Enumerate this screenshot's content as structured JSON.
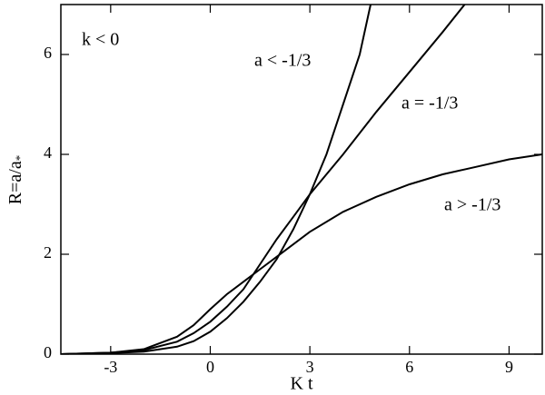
{
  "chart_data": {
    "type": "line",
    "xlabel": "K t",
    "ylabel": "R=a/a",
    "ylabel_subscript": "*",
    "annotations": [
      "k < 0",
      "a < -1/3",
      "a = -1/3",
      "a > -1/3"
    ],
    "xlim": [
      -4.5,
      10
    ],
    "ylim": [
      0,
      7
    ],
    "xticks": [
      -3,
      0,
      3,
      6,
      9
    ],
    "yticks": [
      0,
      2,
      4,
      6
    ],
    "series": [
      {
        "color": "#000000",
        "x": [
          -4.5,
          -3,
          -2,
          -1,
          -0.5,
          0,
          0.5,
          1,
          1.5,
          2,
          2.5,
          3,
          3.5,
          4,
          4.5,
          4.83
        ],
        "values": [
          0,
          0.02,
          0.05,
          0.15,
          0.26,
          0.45,
          0.72,
          1.05,
          1.45,
          1.9,
          2.5,
          3.2,
          4.0,
          5.0,
          6.0,
          7.0
        ]
      },
      {
        "color": "#000000",
        "x": [
          -4.5,
          -3,
          -2,
          -1,
          -0.5,
          0,
          0.5,
          1,
          1.5,
          2,
          2.5,
          3,
          4,
          5,
          6,
          7,
          7.66
        ],
        "values": [
          0,
          0.03,
          0.08,
          0.25,
          0.42,
          0.65,
          0.95,
          1.3,
          1.8,
          2.3,
          2.75,
          3.2,
          4.0,
          4.85,
          5.65,
          6.45,
          7.0
        ]
      },
      {
        "color": "#000000",
        "x": [
          -4.5,
          -3,
          -2,
          -1,
          -0.5,
          0,
          0.5,
          1,
          1.5,
          2,
          3,
          4,
          5,
          6,
          7,
          8,
          9,
          10
        ],
        "values": [
          0,
          0.03,
          0.1,
          0.35,
          0.58,
          0.9,
          1.2,
          1.45,
          1.7,
          1.95,
          2.45,
          2.85,
          3.15,
          3.4,
          3.6,
          3.75,
          3.9,
          4.0
        ]
      }
    ]
  }
}
